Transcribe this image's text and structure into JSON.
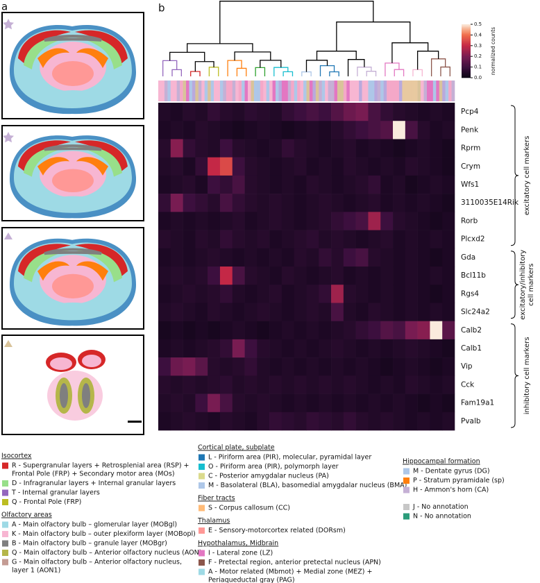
{
  "panels": {
    "a": "a",
    "b": "b"
  },
  "heatmap": {
    "genes": [
      "Pcp4",
      "Penk",
      "Rprm",
      "Crym",
      "Wfs1",
      "3110035E14Rik",
      "Rorb",
      "Plcxd2",
      "Gda",
      "Bcl11b",
      "Rgs4",
      "Slc24a2",
      "Calb2",
      "Calb1",
      "Vip",
      "Cck",
      "Fam19a1",
      "Pvalb"
    ],
    "values": [
      [
        0.05,
        0.04,
        0.06,
        0.05,
        0.08,
        0.06,
        0.05,
        0.07,
        0.06,
        0.05,
        0.08,
        0.1,
        0.12,
        0.1,
        0.14,
        0.18,
        0.2,
        0.12,
        0.08,
        0.06,
        0.05,
        0.04,
        0.05,
        0.04
      ],
      [
        0.04,
        0.05,
        0.04,
        0.06,
        0.05,
        0.04,
        0.03,
        0.04,
        0.05,
        0.04,
        0.03,
        0.04,
        0.05,
        0.04,
        0.06,
        0.08,
        0.1,
        0.12,
        0.14,
        0.5,
        0.12,
        0.06,
        0.04,
        0.05
      ],
      [
        0.06,
        0.22,
        0.08,
        0.06,
        0.05,
        0.1,
        0.06,
        0.05,
        0.04,
        0.05,
        0.08,
        0.06,
        0.05,
        0.04,
        0.05,
        0.06,
        0.04,
        0.05,
        0.04,
        0.03,
        0.04,
        0.05,
        0.04,
        0.03
      ],
      [
        0.05,
        0.06,
        0.04,
        0.08,
        0.3,
        0.35,
        0.1,
        0.06,
        0.05,
        0.04,
        0.05,
        0.06,
        0.04,
        0.05,
        0.04,
        0.06,
        0.05,
        0.04,
        0.05,
        0.04,
        0.06,
        0.05,
        0.04,
        0.03
      ],
      [
        0.04,
        0.05,
        0.06,
        0.04,
        0.1,
        0.08,
        0.12,
        0.06,
        0.05,
        0.04,
        0.05,
        0.04,
        0.06,
        0.05,
        0.04,
        0.05,
        0.06,
        0.08,
        0.04,
        0.05,
        0.03,
        0.04,
        0.05,
        0.04
      ],
      [
        0.08,
        0.2,
        0.1,
        0.08,
        0.06,
        0.12,
        0.08,
        0.06,
        0.05,
        0.06,
        0.05,
        0.04,
        0.05,
        0.06,
        0.05,
        0.04,
        0.05,
        0.06,
        0.04,
        0.05,
        0.04,
        0.05,
        0.04,
        0.03
      ],
      [
        0.04,
        0.05,
        0.04,
        0.05,
        0.04,
        0.05,
        0.06,
        0.04,
        0.05,
        0.06,
        0.05,
        0.04,
        0.05,
        0.06,
        0.08,
        0.1,
        0.12,
        0.25,
        0.1,
        0.06,
        0.05,
        0.04,
        0.03,
        0.04
      ],
      [
        0.06,
        0.05,
        0.04,
        0.06,
        0.05,
        0.08,
        0.06,
        0.05,
        0.06,
        0.04,
        0.05,
        0.06,
        0.07,
        0.05,
        0.06,
        0.05,
        0.04,
        0.05,
        0.06,
        0.04,
        0.05,
        0.04,
        0.05,
        0.04
      ],
      [
        0.04,
        0.05,
        0.04,
        0.05,
        0.06,
        0.05,
        0.04,
        0.05,
        0.04,
        0.05,
        0.04,
        0.06,
        0.05,
        0.08,
        0.06,
        0.1,
        0.12,
        0.06,
        0.05,
        0.04,
        0.05,
        0.04,
        0.03,
        0.04
      ],
      [
        0.05,
        0.06,
        0.05,
        0.06,
        0.1,
        0.3,
        0.12,
        0.06,
        0.05,
        0.04,
        0.06,
        0.05,
        0.04,
        0.05,
        0.06,
        0.04,
        0.05,
        0.04,
        0.05,
        0.04,
        0.05,
        0.04,
        0.05,
        0.04
      ],
      [
        0.04,
        0.05,
        0.06,
        0.05,
        0.06,
        0.08,
        0.05,
        0.04,
        0.05,
        0.06,
        0.04,
        0.05,
        0.06,
        0.08,
        0.25,
        0.06,
        0.05,
        0.04,
        0.05,
        0.04,
        0.05,
        0.04,
        0.03,
        0.04
      ],
      [
        0.05,
        0.06,
        0.05,
        0.04,
        0.06,
        0.05,
        0.04,
        0.05,
        0.06,
        0.05,
        0.04,
        0.05,
        0.06,
        0.05,
        0.12,
        0.05,
        0.04,
        0.06,
        0.05,
        0.04,
        0.05,
        0.04,
        0.05,
        0.04
      ],
      [
        0.03,
        0.04,
        0.03,
        0.04,
        0.03,
        0.04,
        0.05,
        0.04,
        0.03,
        0.04,
        0.05,
        0.04,
        0.05,
        0.04,
        0.05,
        0.06,
        0.08,
        0.1,
        0.14,
        0.12,
        0.2,
        0.22,
        0.5,
        0.15
      ],
      [
        0.04,
        0.05,
        0.04,
        0.05,
        0.06,
        0.08,
        0.2,
        0.1,
        0.06,
        0.05,
        0.04,
        0.05,
        0.04,
        0.05,
        0.06,
        0.05,
        0.04,
        0.05,
        0.04,
        0.05,
        0.06,
        0.05,
        0.04,
        0.03
      ],
      [
        0.1,
        0.18,
        0.2,
        0.15,
        0.06,
        0.05,
        0.06,
        0.08,
        0.05,
        0.04,
        0.05,
        0.04,
        0.05,
        0.04,
        0.05,
        0.04,
        0.05,
        0.04,
        0.03,
        0.04,
        0.05,
        0.04,
        0.03,
        0.04
      ],
      [
        0.06,
        0.05,
        0.06,
        0.05,
        0.06,
        0.07,
        0.05,
        0.06,
        0.05,
        0.06,
        0.05,
        0.06,
        0.05,
        0.06,
        0.05,
        0.06,
        0.05,
        0.04,
        0.05,
        0.04,
        0.06,
        0.05,
        0.04,
        0.05
      ],
      [
        0.05,
        0.06,
        0.05,
        0.1,
        0.2,
        0.12,
        0.06,
        0.05,
        0.06,
        0.05,
        0.04,
        0.05,
        0.04,
        0.05,
        0.04,
        0.05,
        0.04,
        0.05,
        0.04,
        0.05,
        0.04,
        0.03,
        0.04,
        0.03
      ],
      [
        0.04,
        0.05,
        0.06,
        0.05,
        0.04,
        0.06,
        0.05,
        0.04,
        0.06,
        0.08,
        0.07,
        0.06,
        0.08,
        0.07,
        0.06,
        0.08,
        0.06,
        0.05,
        0.06,
        0.05,
        0.04,
        0.05,
        0.04,
        0.05
      ]
    ],
    "colorbar": {
      "label": "normalized counts",
      "lim": [
        0,
        0.5
      ],
      "ticks": [
        {
          "value": 0,
          "label": "0.0"
        },
        0.1,
        0.2,
        0.3,
        0.4,
        0.5
      ]
    },
    "groups": [
      {
        "lines": [
          "excitatory cell markers"
        ],
        "rows": [
          0,
          7
        ]
      },
      {
        "lines": [
          "excitatory/inhibitory",
          "cell markers"
        ],
        "rows": [
          8,
          11
        ]
      },
      {
        "lines": [
          "inhibitory cell markers"
        ],
        "rows": [
          12,
          17
        ]
      }
    ]
  },
  "legend": {
    "columns": [
      [
        {
          "title": "Isocortex",
          "items": [
            {
              "color": "#d62728",
              "lines": [
                "R - Supergranular layers + Retrosplenial area (RSP) +",
                "Frontal Pole (FRP) + Secondary motor area (MOs)"
              ]
            },
            {
              "color": "#98df8a",
              "lines": [
                "D - Infragranular layers + Internal granular layers"
              ]
            },
            {
              "color": "#9467bd",
              "lines": [
                "T - Internal granular layers"
              ]
            },
            {
              "color": "#bcbd22",
              "lines": [
                "Q - Frontal Pole (FRP)"
              ]
            }
          ]
        },
        {
          "title": "Olfactory areas",
          "items": [
            {
              "color": "#9edae5",
              "lines": [
                "A - Main olfactory bulb – glomerular layer (MOBgl)"
              ]
            },
            {
              "color": "#f7b6d2",
              "lines": [
                "K - Main olfactory bulb – outer plexiform layer (MOBopl)"
              ]
            },
            {
              "color": "#7f7f7f",
              "lines": [
                "B - Main olfactory bulb – granule layer (MOBgr)"
              ]
            },
            {
              "color": "#b5b64a",
              "lines": [
                "Q - Main olfactory bulb – Anterior olfactory nucleus (AON)"
              ]
            },
            {
              "color": "#c49c94",
              "lines": [
                "G - Main olfactory bulb – Anterior olfactory nucleus,",
                "layer 1 (AON1)"
              ]
            }
          ]
        }
      ],
      [
        {
          "title": "Cortical plate, subplate",
          "items": [
            {
              "color": "#1f77b4",
              "lines": [
                "L - Piriform area (PIR), molecular, pyramidal layer"
              ]
            },
            {
              "color": "#17becf",
              "lines": [
                "O - Piriform area (PIR), polymorph layer"
              ]
            },
            {
              "color": "#dbdb8d",
              "lines": [
                "C - Posterior amygdalar nucleus (PA)"
              ]
            },
            {
              "color": "#aec7e8",
              "lines": [
                "M - Basolateral (BLA), basomedial amygdalar nucleus (BMA)"
              ]
            }
          ]
        },
        {
          "title": "Fiber tracts",
          "items": [
            {
              "color": "#ffbb78",
              "lines": [
                "S - Corpus callosum (CC)"
              ]
            }
          ]
        },
        {
          "title": "Thalamus",
          "items": [
            {
              "color": "#ff9896",
              "lines": [
                "E - Sensory-motorcortex related (DORsm)"
              ]
            }
          ]
        },
        {
          "title": "Hypothalamus, Midbrain",
          "items": [
            {
              "color": "#e377c2",
              "lines": [
                "I -  Lateral zone (LZ)"
              ]
            },
            {
              "color": "#8c564b",
              "lines": [
                "F - Pretectal region, anterior pretectal nucleus (APN)"
              ]
            },
            {
              "color": "#9edae5",
              "lines": [
                "A -  Motor related (Mbmot) + Medial zone (MEZ) +",
                "Periaqueductal gray (PAG)"
              ]
            }
          ]
        }
      ],
      [
        {
          "title": "Hippocampal formation",
          "items": [
            {
              "color": "#aec7e8",
              "lines": [
                "M - Dentate gyrus (DG)"
              ]
            },
            {
              "color": "#ff7f0e",
              "lines": [
                "P - Stratum pyramidale (sp)"
              ]
            },
            {
              "color": "#c5b0d5",
              "lines": [
                "H - Ammon's horn (CA)"
              ]
            }
          ]
        },
        {
          "items": [
            {
              "color": "#c7c7c7",
              "lines": [
                "J - No annotation"
              ]
            },
            {
              "color": "#2b9c7a",
              "lines": [
                "N - No annotation"
              ]
            }
          ]
        }
      ]
    ]
  }
}
